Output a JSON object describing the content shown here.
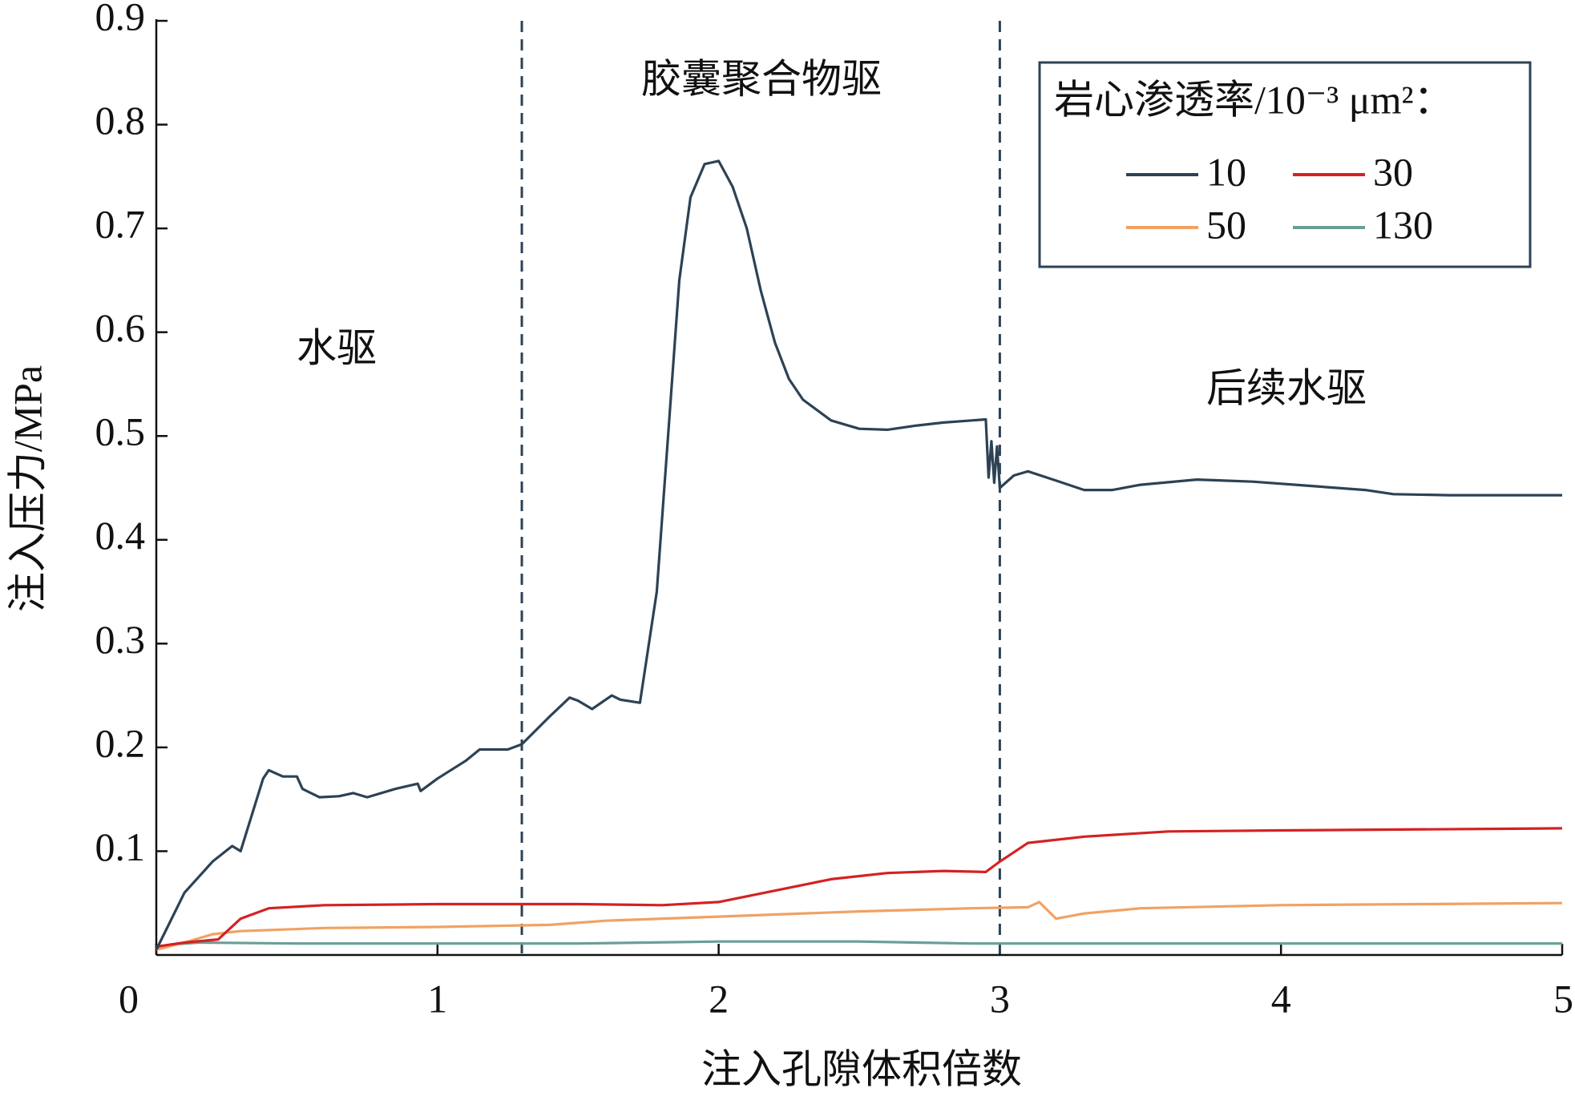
{
  "chart_data": {
    "type": "line",
    "xlabel": "注入孔隙体积倍数",
    "ylabel": "注入压力/MPa",
    "xlim": [
      0,
      5
    ],
    "ylim": [
      0,
      0.9
    ],
    "xticks": [
      0,
      1,
      2,
      3,
      4,
      5
    ],
    "yticks": [
      0.1,
      0.2,
      0.3,
      0.4,
      0.5,
      0.6,
      0.7,
      0.8,
      0.9
    ],
    "vlines": [
      1.3,
      3.0
    ],
    "annotations": [
      "水驱",
      "胶囊聚合物驱",
      "后续水驱"
    ],
    "legend_title": "岩心渗透率/10⁻³ μm²：",
    "legend": "upper right",
    "series": [
      {
        "name": "10",
        "color": "#2d4254",
        "x": [
          0,
          0.1,
          0.2,
          0.27,
          0.3,
          0.38,
          0.4,
          0.45,
          0.5,
          0.52,
          0.58,
          0.65,
          0.7,
          0.75,
          0.85,
          0.93,
          0.94,
          1.0,
          1.1,
          1.15,
          1.25,
          1.3,
          1.4,
          1.47,
          1.5,
          1.55,
          1.62,
          1.65,
          1.72,
          1.78,
          1.82,
          1.86,
          1.9,
          1.95,
          2.0,
          2.05,
          2.1,
          2.15,
          2.2,
          2.25,
          2.3,
          2.4,
          2.5,
          2.6,
          2.7,
          2.8,
          2.9,
          2.95,
          2.96,
          2.97,
          2.98,
          2.99,
          3.0,
          3.05,
          3.1,
          3.2,
          3.3,
          3.4,
          3.5,
          3.7,
          3.9,
          4.1,
          4.3,
          4.4,
          4.6,
          5.0
        ],
        "values": [
          0.005,
          0.06,
          0.09,
          0.105,
          0.1,
          0.17,
          0.178,
          0.172,
          0.172,
          0.16,
          0.152,
          0.153,
          0.156,
          0.152,
          0.16,
          0.165,
          0.158,
          0.17,
          0.187,
          0.198,
          0.198,
          0.203,
          0.23,
          0.248,
          0.245,
          0.237,
          0.25,
          0.246,
          0.243,
          0.35,
          0.5,
          0.65,
          0.73,
          0.762,
          0.765,
          0.74,
          0.7,
          0.64,
          0.59,
          0.555,
          0.535,
          0.515,
          0.507,
          0.506,
          0.51,
          0.513,
          0.515,
          0.516,
          0.46,
          0.495,
          0.455,
          0.49,
          0.45,
          0.462,
          0.466,
          0.457,
          0.448,
          0.448,
          0.453,
          0.458,
          0.456,
          0.452,
          0.448,
          0.444,
          0.443,
          0.443
        ]
      },
      {
        "name": "30",
        "color": "#d42222",
        "x": [
          0,
          0.1,
          0.22,
          0.3,
          0.4,
          0.6,
          1.0,
          1.5,
          1.8,
          2.0,
          2.2,
          2.4,
          2.6,
          2.8,
          2.95,
          3.0,
          3.1,
          3.3,
          3.6,
          4.0,
          5.0
        ],
        "values": [
          0.008,
          0.012,
          0.015,
          0.035,
          0.045,
          0.048,
          0.049,
          0.049,
          0.048,
          0.051,
          0.062,
          0.073,
          0.079,
          0.081,
          0.08,
          0.09,
          0.108,
          0.114,
          0.119,
          0.12,
          0.122
        ]
      },
      {
        "name": "50",
        "color": "#f0a264",
        "x": [
          0,
          0.1,
          0.2,
          0.3,
          0.6,
          1.0,
          1.4,
          1.6,
          2.0,
          2.5,
          2.9,
          3.1,
          3.14,
          3.2,
          3.3,
          3.5,
          4.0,
          4.5,
          5.0
        ],
        "values": [
          0.005,
          0.012,
          0.02,
          0.023,
          0.026,
          0.027,
          0.029,
          0.033,
          0.037,
          0.042,
          0.045,
          0.046,
          0.051,
          0.035,
          0.04,
          0.045,
          0.048,
          0.049,
          0.05
        ]
      },
      {
        "name": "130",
        "color": "#6a9e98",
        "x": [
          0,
          0.05,
          0.15,
          0.5,
          1.0,
          1.5,
          2.0,
          2.5,
          2.9,
          3.0,
          3.5,
          4.0,
          5.0
        ],
        "values": [
          0.005,
          0.01,
          0.012,
          0.011,
          0.011,
          0.011,
          0.013,
          0.013,
          0.011,
          0.011,
          0.011,
          0.011,
          0.011
        ]
      }
    ]
  }
}
